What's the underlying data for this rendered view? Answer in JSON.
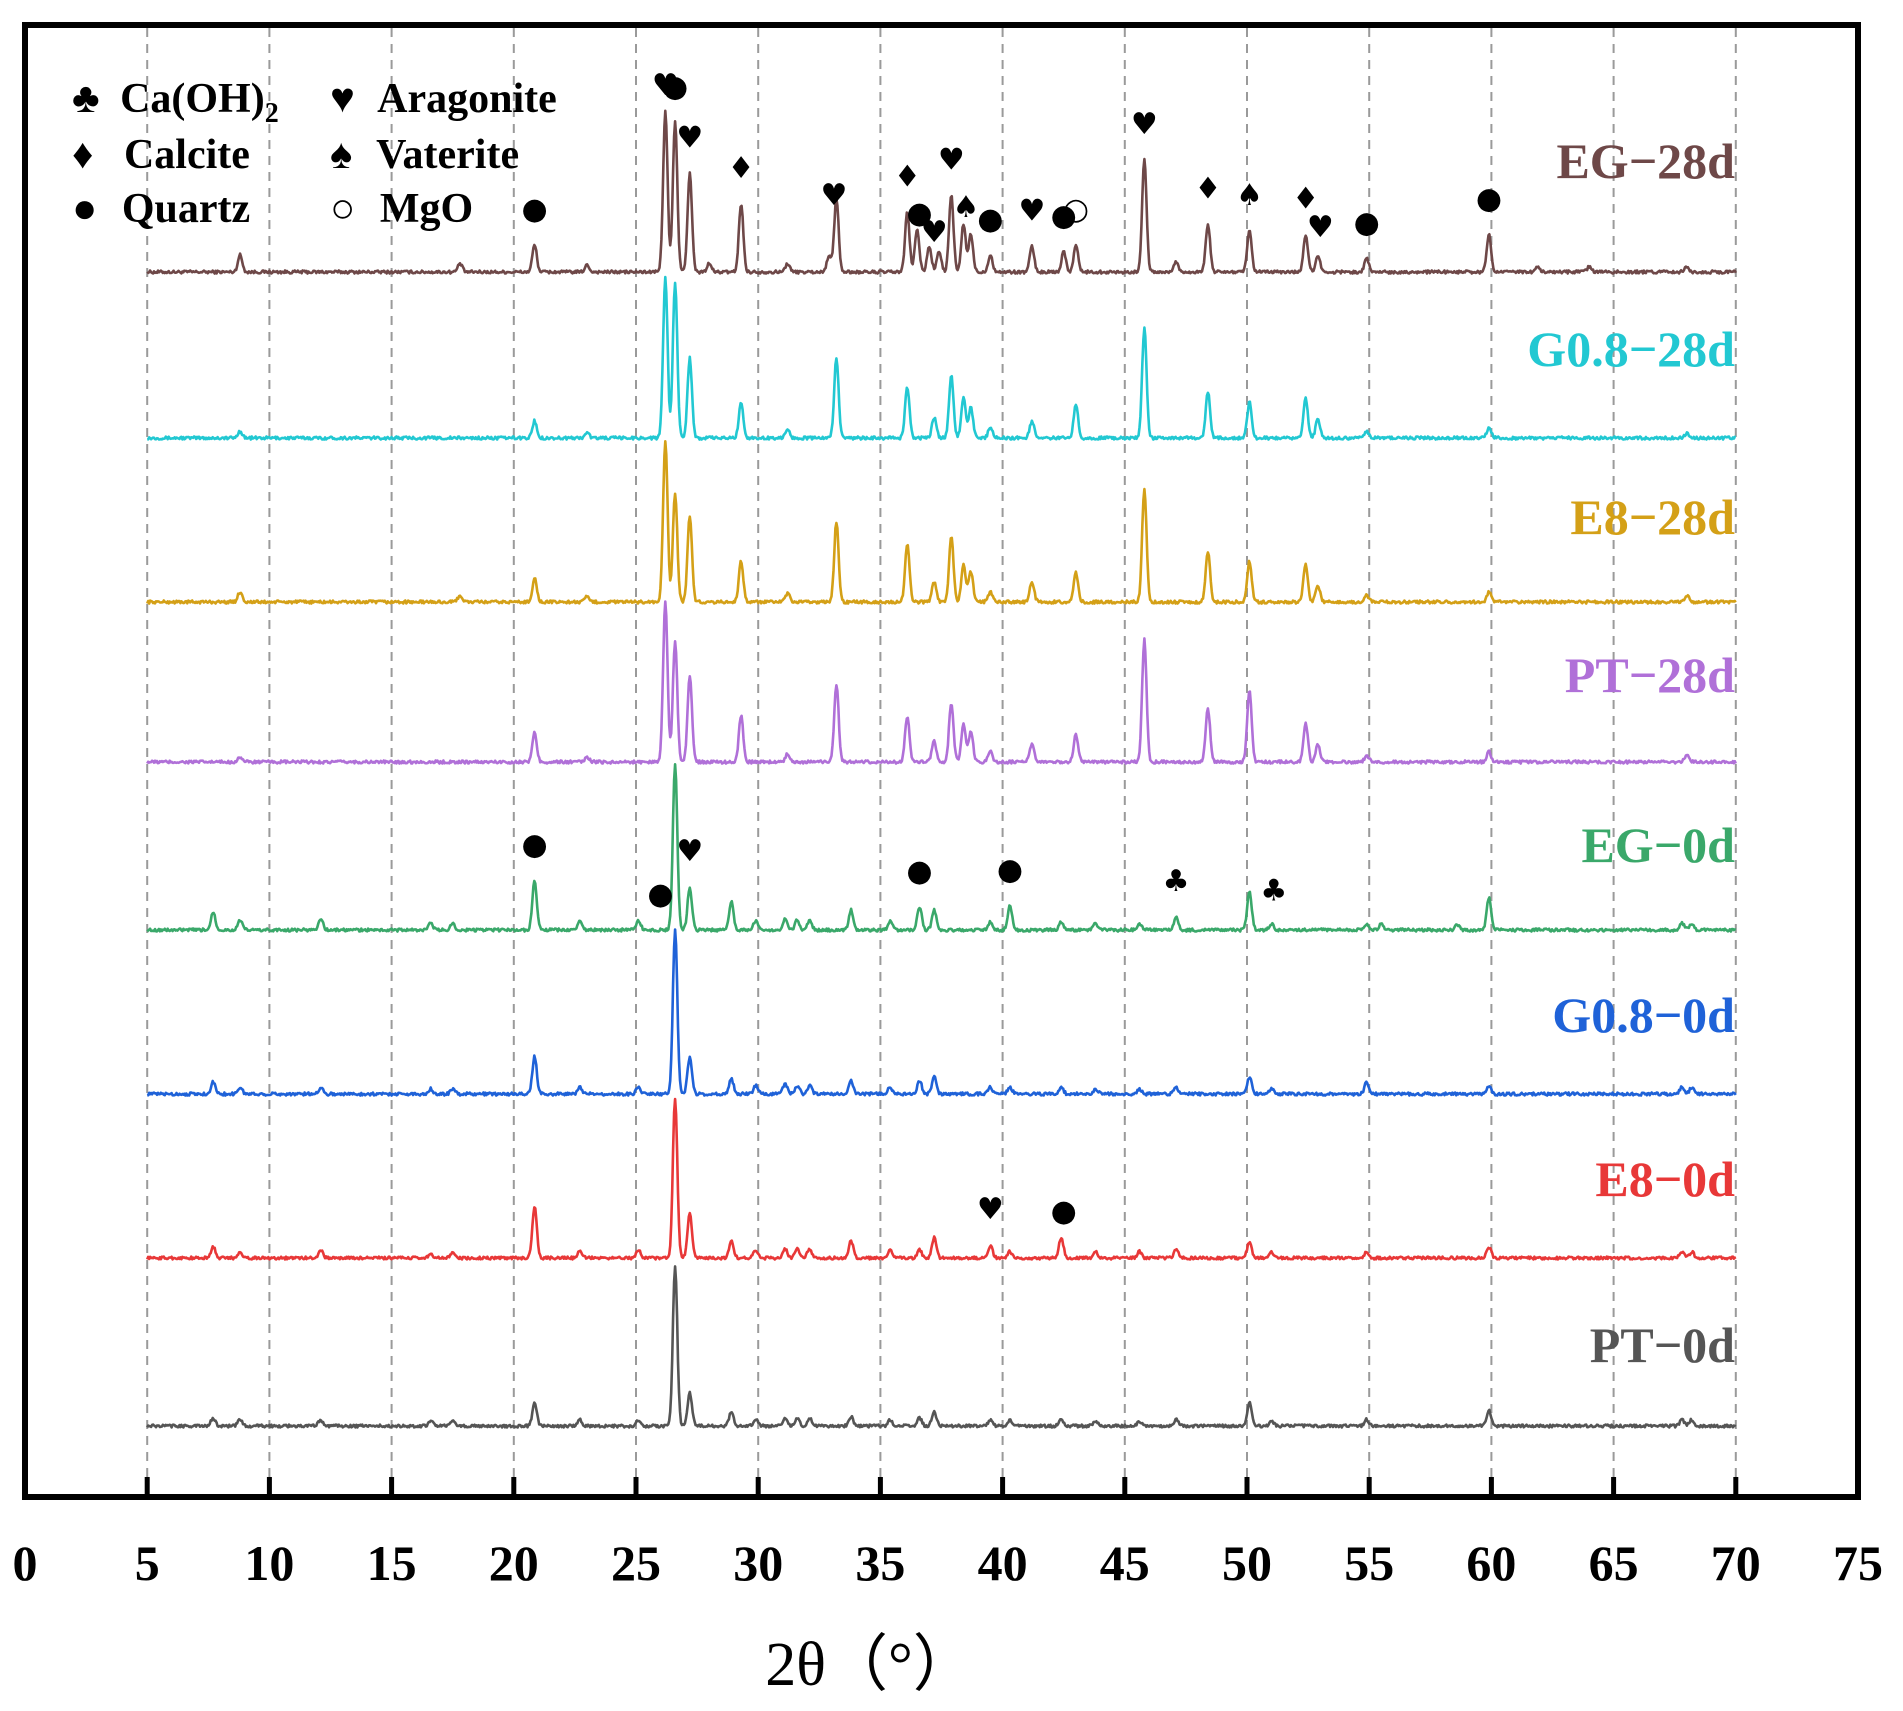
{
  "chart_data": {
    "type": "line",
    "xlabel": "2θ（°）",
    "ylabel": "",
    "xlim": [
      0,
      75
    ],
    "x_ticks": [
      0,
      5,
      10,
      15,
      20,
      25,
      30,
      35,
      40,
      45,
      50,
      55,
      60,
      65,
      70,
      75
    ],
    "grid": "vertical dashed lines at 5..70",
    "x_range_data": [
      5,
      70
    ],
    "legend": [
      {
        "symbol": "♣",
        "label": "Ca(OH)",
        "subscript": "2"
      },
      {
        "symbol": "♥",
        "label": "Aragonite"
      },
      {
        "symbol": "♦",
        "label": "Calcite"
      },
      {
        "symbol": "♠",
        "label": "Vaterite"
      },
      {
        "symbol": "●",
        "label": "Quartz"
      },
      {
        "symbol": "○",
        "label": "MgO"
      }
    ],
    "legend_position": "top-left",
    "series": [
      {
        "name": "EG−28d",
        "color": "#6e4848",
        "peaks": [
          [
            8.8,
            0.1
          ],
          [
            17.8,
            0.05
          ],
          [
            20.85,
            0.16
          ],
          [
            23.0,
            0.04
          ],
          [
            26.2,
            0.95
          ],
          [
            26.6,
            0.88
          ],
          [
            27.2,
            0.58
          ],
          [
            28.0,
            0.05
          ],
          [
            29.3,
            0.4
          ],
          [
            31.2,
            0.05
          ],
          [
            32.9,
            0.1
          ],
          [
            33.2,
            0.43
          ],
          [
            36.1,
            0.35
          ],
          [
            36.5,
            0.25
          ],
          [
            37.0,
            0.15
          ],
          [
            37.4,
            0.12
          ],
          [
            37.9,
            0.45
          ],
          [
            38.4,
            0.28
          ],
          [
            38.7,
            0.22
          ],
          [
            39.5,
            0.1
          ],
          [
            41.2,
            0.15
          ],
          [
            42.5,
            0.12
          ],
          [
            43.0,
            0.16
          ],
          [
            45.8,
            0.66
          ],
          [
            47.1,
            0.06
          ],
          [
            48.4,
            0.28
          ],
          [
            50.1,
            0.24
          ],
          [
            52.4,
            0.22
          ],
          [
            52.9,
            0.1
          ],
          [
            54.9,
            0.08
          ],
          [
            59.9,
            0.22
          ],
          [
            61.9,
            0.03
          ],
          [
            64.0,
            0.03
          ],
          [
            68.0,
            0.03
          ]
        ]
      },
      {
        "name": "G0.8−28d",
        "color": "#22c8d2",
        "peaks": [
          [
            8.8,
            0.04
          ],
          [
            20.85,
            0.1
          ],
          [
            23.0,
            0.03
          ],
          [
            26.2,
            0.95
          ],
          [
            26.6,
            0.92
          ],
          [
            27.2,
            0.47
          ],
          [
            29.3,
            0.21
          ],
          [
            31.2,
            0.05
          ],
          [
            33.2,
            0.47
          ],
          [
            36.1,
            0.3
          ],
          [
            37.2,
            0.12
          ],
          [
            37.9,
            0.37
          ],
          [
            38.4,
            0.24
          ],
          [
            38.7,
            0.18
          ],
          [
            39.5,
            0.06
          ],
          [
            41.2,
            0.1
          ],
          [
            43.0,
            0.2
          ],
          [
            45.8,
            0.65
          ],
          [
            48.4,
            0.27
          ],
          [
            50.1,
            0.21
          ],
          [
            52.4,
            0.23
          ],
          [
            52.9,
            0.11
          ],
          [
            54.9,
            0.04
          ],
          [
            59.9,
            0.06
          ],
          [
            68.0,
            0.03
          ]
        ]
      },
      {
        "name": "E8−28d",
        "color": "#d4a017",
        "peaks": [
          [
            8.8,
            0.06
          ],
          [
            17.8,
            0.04
          ],
          [
            20.85,
            0.14
          ],
          [
            23.0,
            0.03
          ],
          [
            26.2,
            0.95
          ],
          [
            26.6,
            0.64
          ],
          [
            27.2,
            0.51
          ],
          [
            29.3,
            0.24
          ],
          [
            31.2,
            0.05
          ],
          [
            33.2,
            0.47
          ],
          [
            36.1,
            0.34
          ],
          [
            37.2,
            0.12
          ],
          [
            37.9,
            0.39
          ],
          [
            38.4,
            0.22
          ],
          [
            38.7,
            0.18
          ],
          [
            39.5,
            0.06
          ],
          [
            41.2,
            0.12
          ],
          [
            43.0,
            0.17
          ],
          [
            45.8,
            0.67
          ],
          [
            48.4,
            0.3
          ],
          [
            50.1,
            0.24
          ],
          [
            52.4,
            0.22
          ],
          [
            52.9,
            0.1
          ],
          [
            54.9,
            0.04
          ],
          [
            59.9,
            0.06
          ],
          [
            68.0,
            0.04
          ]
        ]
      },
      {
        "name": "PT−28d",
        "color": "#b070d8",
        "peaks": [
          [
            8.8,
            0.03
          ],
          [
            20.85,
            0.17
          ],
          [
            23.0,
            0.03
          ],
          [
            26.2,
            0.95
          ],
          [
            26.6,
            0.71
          ],
          [
            27.2,
            0.51
          ],
          [
            29.3,
            0.27
          ],
          [
            31.2,
            0.05
          ],
          [
            33.2,
            0.46
          ],
          [
            36.1,
            0.27
          ],
          [
            37.2,
            0.12
          ],
          [
            37.9,
            0.35
          ],
          [
            38.4,
            0.22
          ],
          [
            38.7,
            0.18
          ],
          [
            39.5,
            0.06
          ],
          [
            41.2,
            0.1
          ],
          [
            43.0,
            0.16
          ],
          [
            45.8,
            0.72
          ],
          [
            48.4,
            0.31
          ],
          [
            50.1,
            0.43
          ],
          [
            52.4,
            0.23
          ],
          [
            52.9,
            0.1
          ],
          [
            54.9,
            0.04
          ],
          [
            59.9,
            0.06
          ],
          [
            68.0,
            0.04
          ]
        ]
      },
      {
        "name": "EG−0d",
        "color": "#3aa86a",
        "peaks": [
          [
            7.7,
            0.11
          ],
          [
            8.8,
            0.06
          ],
          [
            12.1,
            0.07
          ],
          [
            16.6,
            0.04
          ],
          [
            17.5,
            0.04
          ],
          [
            20.85,
            0.3
          ],
          [
            22.7,
            0.05
          ],
          [
            25.1,
            0.06
          ],
          [
            26.6,
            1.0
          ],
          [
            27.2,
            0.26
          ],
          [
            28.9,
            0.17
          ],
          [
            29.9,
            0.06
          ],
          [
            31.1,
            0.07
          ],
          [
            31.6,
            0.06
          ],
          [
            32.1,
            0.06
          ],
          [
            33.8,
            0.12
          ],
          [
            35.4,
            0.05
          ],
          [
            36.6,
            0.14
          ],
          [
            37.2,
            0.12
          ],
          [
            39.5,
            0.05
          ],
          [
            40.3,
            0.15
          ],
          [
            42.4,
            0.05
          ],
          [
            43.8,
            0.04
          ],
          [
            45.6,
            0.04
          ],
          [
            47.1,
            0.08
          ],
          [
            50.1,
            0.24
          ],
          [
            51.0,
            0.04
          ],
          [
            54.9,
            0.04
          ],
          [
            55.5,
            0.04
          ],
          [
            58.6,
            0.03
          ],
          [
            59.9,
            0.2
          ],
          [
            67.8,
            0.04
          ],
          [
            68.2,
            0.04
          ]
        ]
      },
      {
        "name": "G0.8−0d",
        "color": "#1f62d8",
        "peaks": [
          [
            7.7,
            0.07
          ],
          [
            8.8,
            0.04
          ],
          [
            12.1,
            0.04
          ],
          [
            16.6,
            0.03
          ],
          [
            17.5,
            0.03
          ],
          [
            20.85,
            0.22
          ],
          [
            22.7,
            0.04
          ],
          [
            25.1,
            0.04
          ],
          [
            26.6,
            0.96
          ],
          [
            27.2,
            0.22
          ],
          [
            28.9,
            0.09
          ],
          [
            29.9,
            0.05
          ],
          [
            31.1,
            0.06
          ],
          [
            31.6,
            0.05
          ],
          [
            32.1,
            0.05
          ],
          [
            33.8,
            0.08
          ],
          [
            35.4,
            0.04
          ],
          [
            36.6,
            0.08
          ],
          [
            37.2,
            0.1
          ],
          [
            39.5,
            0.04
          ],
          [
            40.3,
            0.04
          ],
          [
            42.4,
            0.04
          ],
          [
            43.8,
            0.03
          ],
          [
            45.6,
            0.03
          ],
          [
            47.1,
            0.04
          ],
          [
            50.1,
            0.1
          ],
          [
            51.0,
            0.03
          ],
          [
            54.9,
            0.07
          ],
          [
            59.9,
            0.05
          ],
          [
            67.8,
            0.04
          ],
          [
            68.2,
            0.04
          ]
        ]
      },
      {
        "name": "E8−0d",
        "color": "#e83838",
        "peaks": [
          [
            7.7,
            0.07
          ],
          [
            8.8,
            0.04
          ],
          [
            12.1,
            0.05
          ],
          [
            16.6,
            0.03
          ],
          [
            17.5,
            0.03
          ],
          [
            20.85,
            0.32
          ],
          [
            22.7,
            0.04
          ],
          [
            25.1,
            0.05
          ],
          [
            26.6,
            1.0
          ],
          [
            27.2,
            0.28
          ],
          [
            28.9,
            0.11
          ],
          [
            29.9,
            0.05
          ],
          [
            31.1,
            0.06
          ],
          [
            31.6,
            0.06
          ],
          [
            32.1,
            0.06
          ],
          [
            33.8,
            0.11
          ],
          [
            35.4,
            0.05
          ],
          [
            36.6,
            0.05
          ],
          [
            37.2,
            0.13
          ],
          [
            39.5,
            0.08
          ],
          [
            40.3,
            0.04
          ],
          [
            42.4,
            0.13
          ],
          [
            43.8,
            0.04
          ],
          [
            45.6,
            0.04
          ],
          [
            47.1,
            0.05
          ],
          [
            50.1,
            0.1
          ],
          [
            51.0,
            0.04
          ],
          [
            54.9,
            0.04
          ],
          [
            59.9,
            0.07
          ],
          [
            67.8,
            0.04
          ],
          [
            68.2,
            0.04
          ]
        ]
      },
      {
        "name": "PT−0d",
        "color": "#555555",
        "peaks": [
          [
            7.7,
            0.05
          ],
          [
            8.8,
            0.04
          ],
          [
            12.1,
            0.04
          ],
          [
            16.6,
            0.03
          ],
          [
            17.5,
            0.03
          ],
          [
            20.85,
            0.14
          ],
          [
            22.7,
            0.04
          ],
          [
            25.1,
            0.04
          ],
          [
            26.6,
            1.0
          ],
          [
            27.2,
            0.21
          ],
          [
            28.9,
            0.09
          ],
          [
            29.9,
            0.04
          ],
          [
            31.1,
            0.05
          ],
          [
            31.6,
            0.05
          ],
          [
            32.1,
            0.05
          ],
          [
            33.8,
            0.06
          ],
          [
            35.4,
            0.04
          ],
          [
            36.6,
            0.05
          ],
          [
            37.2,
            0.09
          ],
          [
            39.5,
            0.04
          ],
          [
            40.3,
            0.04
          ],
          [
            42.4,
            0.04
          ],
          [
            43.8,
            0.03
          ],
          [
            45.6,
            0.03
          ],
          [
            47.1,
            0.04
          ],
          [
            50.1,
            0.15
          ],
          [
            51.0,
            0.03
          ],
          [
            54.9,
            0.04
          ],
          [
            59.9,
            0.1
          ],
          [
            67.8,
            0.04
          ],
          [
            68.2,
            0.04
          ]
        ]
      }
    ],
    "annotations": [
      {
        "series": "EG−28d",
        "symbol": "●",
        "x": 20.85
      },
      {
        "series": "EG−28d",
        "symbol": "♥",
        "x": 26.2
      },
      {
        "series": "EG−28d",
        "symbol": "●",
        "x": 26.6
      },
      {
        "series": "EG−28d",
        "symbol": "♥",
        "x": 27.2
      },
      {
        "series": "EG−28d",
        "symbol": "♦",
        "x": 29.3
      },
      {
        "series": "EG−28d",
        "symbol": "♥",
        "x": 33.1
      },
      {
        "series": "EG−28d",
        "symbol": "♦",
        "x": 36.1
      },
      {
        "series": "EG−28d",
        "symbol": "●",
        "x": 36.6
      },
      {
        "series": "EG−28d",
        "symbol": "♥",
        "x": 37.2
      },
      {
        "series": "EG−28d",
        "symbol": "♥",
        "x": 37.9
      },
      {
        "series": "EG−28d",
        "symbol": "♠",
        "x": 38.5
      },
      {
        "series": "EG−28d",
        "symbol": "●",
        "x": 39.5
      },
      {
        "series": "EG−28d",
        "symbol": "♥",
        "x": 41.2
      },
      {
        "series": "EG−28d",
        "symbol": "●",
        "x": 42.5
      },
      {
        "series": "EG−28d",
        "symbol": "○",
        "x": 43.0
      },
      {
        "series": "EG−28d",
        "symbol": "♥",
        "x": 45.8
      },
      {
        "series": "EG−28d",
        "symbol": "♦",
        "x": 48.4
      },
      {
        "series": "EG−28d",
        "symbol": "♠",
        "x": 50.1
      },
      {
        "series": "EG−28d",
        "symbol": "♦",
        "x": 52.4
      },
      {
        "series": "EG−28d",
        "symbol": "♥",
        "x": 53.0
      },
      {
        "series": "EG−28d",
        "symbol": "●",
        "x": 54.9
      },
      {
        "series": "EG−28d",
        "symbol": "●",
        "x": 59.9
      },
      {
        "series": "EG−0d",
        "symbol": "●",
        "x": 20.85
      },
      {
        "series": "EG−0d",
        "symbol": "●",
        "x": 26.0
      },
      {
        "series": "EG−0d",
        "symbol": "♥",
        "x": 27.2
      },
      {
        "series": "EG−0d",
        "symbol": "●",
        "x": 36.6
      },
      {
        "series": "EG−0d",
        "symbol": "●",
        "x": 40.3
      },
      {
        "series": "EG−0d",
        "symbol": "♣",
        "x": 47.1
      },
      {
        "series": "EG−0d",
        "symbol": "♣",
        "x": 51.1
      },
      {
        "series": "E8−0d",
        "symbol": "♥",
        "x": 39.5
      },
      {
        "series": "E8−0d",
        "symbol": "●",
        "x": 42.5
      }
    ]
  }
}
